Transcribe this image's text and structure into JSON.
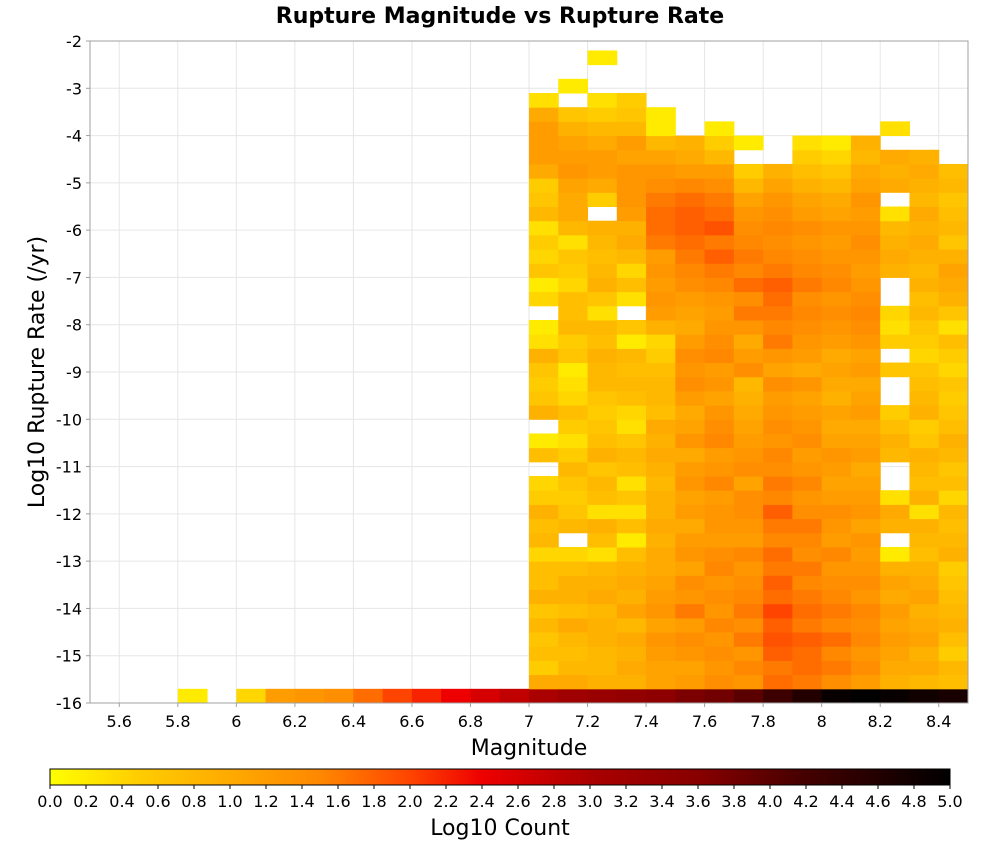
{
  "chart_data": {
    "type": "heatmap",
    "title": "Rupture Magnitude vs Rupture Rate",
    "xlabel": "Magnitude",
    "ylabel": "Log10 Rupture Rate (/yr)",
    "xlim": [
      5.5,
      8.5
    ],
    "ylim": [
      -16,
      -2
    ],
    "x_ticks": [
      5.6,
      5.8,
      6,
      6.2,
      6.4,
      6.6,
      6.8,
      7,
      7.2,
      7.4,
      7.6,
      7.8,
      8,
      8.2,
      8.4
    ],
    "y_ticks": [
      -2,
      -3,
      -4,
      -5,
      -6,
      -7,
      -8,
      -9,
      -10,
      -11,
      -12,
      -13,
      -14,
      -15,
      -16
    ],
    "grid": true,
    "x_bin_width": 0.1,
    "y_bin_width": 0.3,
    "x_first_bin_center": 5.55,
    "y_first_bin_center": -15.85,
    "columns": [
      {
        "x": 5.85,
        "y_start": -15.85,
        "values": [
          0.2
        ]
      },
      {
        "x": 6.05,
        "y_start": -15.85,
        "values": [
          0.4
        ]
      },
      {
        "x": 6.15,
        "y_start": -15.85,
        "values": [
          1.2
        ]
      },
      {
        "x": 6.25,
        "y_start": -15.85,
        "values": [
          1.3
        ]
      },
      {
        "x": 6.35,
        "y_start": -15.85,
        "values": [
          1.4
        ]
      },
      {
        "x": 6.45,
        "y_start": -15.85,
        "values": [
          1.7
        ]
      },
      {
        "x": 6.55,
        "y_start": -15.85,
        "values": [
          2.0
        ]
      },
      {
        "x": 6.65,
        "y_start": -15.85,
        "values": [
          2.2
        ]
      },
      {
        "x": 6.75,
        "y_start": -15.85,
        "values": [
          2.4
        ]
      },
      {
        "x": 6.85,
        "y_start": -15.85,
        "values": [
          2.6
        ]
      },
      {
        "x": 6.95,
        "y_start": -15.85,
        "values": [
          2.8
        ]
      },
      {
        "x": 7.05,
        "y_start": -15.85,
        "values": [
          3.0,
          1.0,
          0.5,
          0.7,
          0.6,
          0.8,
          0.6,
          0.9,
          0.7,
          0.7,
          0.4,
          0.8,
          0.7,
          0.9,
          0.5,
          0.4,
          null,
          0.7,
          0.2,
          null,
          0.9,
          0.6,
          0.5,
          0.6,
          0.9,
          0.3,
          0.2,
          null,
          0.4,
          0.2,
          0.6,
          0.4,
          0.5,
          0.3,
          0.8,
          0.6,
          0.5,
          1.0,
          1.2,
          1.2,
          1.2,
          1.0,
          0.3
        ]
      },
      {
        "x": 7.15,
        "y_start": -15.85,
        "values": [
          3.2,
          1.0,
          0.8,
          0.7,
          0.8,
          1.0,
          0.7,
          0.9,
          0.9,
          0.7,
          0.4,
          null,
          0.8,
          0.6,
          0.5,
          0.6,
          0.8,
          0.5,
          0.3,
          0.5,
          0.7,
          0.4,
          0.3,
          0.2,
          0.6,
          0.5,
          0.8,
          0.7,
          0.7,
          0.4,
          0.5,
          0.6,
          0.3,
          0.8,
          1.0,
          1.0,
          1.1,
          1.3,
          1.2,
          1.1,
          0.9,
          0.6,
          null,
          0.2,
          null
        ]
      },
      {
        "x": 7.25,
        "y_start": -15.85,
        "values": [
          3.3,
          0.9,
          0.8,
          0.8,
          0.9,
          0.9,
          0.8,
          1.0,
          0.9,
          0.8,
          0.3,
          0.7,
          0.9,
          0.3,
          0.7,
          0.8,
          0.6,
          0.9,
          0.7,
          0.6,
          0.5,
          0.6,
          0.8,
          0.8,
          0.9,
          0.7,
          0.8,
          0.3,
          0.6,
          0.9,
          0.8,
          0.7,
          0.8,
          0.9,
          null,
          0.5,
          1.0,
          1.2,
          1.2,
          1.0,
          0.8,
          0.5,
          0.3,
          null,
          null,
          0.2
        ]
      },
      {
        "x": 7.35,
        "y_start": -15.85,
        "values": [
          3.4,
          0.9,
          1.0,
          0.9,
          1.0,
          0.8,
          1.1,
          0.9,
          1.0,
          0.9,
          0.7,
          0.2,
          0.7,
          0.3,
          0.6,
          0.3,
          0.7,
          0.8,
          0.6,
          0.3,
          0.4,
          0.7,
          0.8,
          0.7,
          0.8,
          0.2,
          0.6,
          null,
          0.3,
          0.7,
          0.4,
          0.8,
          1.0,
          0.9,
          1.2,
          1.3,
          1.3,
          1.3,
          1.1,
          1.2,
          0.8,
          0.6,
          0.5
        ]
      },
      {
        "x": 7.45,
        "y_start": -15.85,
        "values": [
          3.5,
          1.1,
          1.1,
          1.2,
          1.3,
          1.1,
          1.3,
          1.2,
          1.1,
          1.0,
          1.0,
          0.9,
          1.0,
          0.9,
          0.9,
          0.8,
          0.9,
          1.0,
          0.9,
          1.0,
          0.7,
          0.8,
          0.8,
          0.7,
          0.5,
          0.4,
          0.9,
          1.2,
          1.3,
          1.2,
          1.3,
          1.2,
          1.6,
          1.7,
          1.7,
          1.6,
          1.4,
          1.3,
          1.1,
          0.8,
          0.2,
          0.2
        ]
      },
      {
        "x": 7.55,
        "y_start": -15.85,
        "values": [
          3.7,
          1.2,
          1.1,
          1.3,
          1.4,
          1.2,
          1.6,
          1.3,
          1.4,
          1.1,
          1.3,
          1.2,
          1.0,
          1.2,
          1.1,
          1.3,
          1.2,
          1.0,
          1.3,
          1.1,
          1.0,
          1.2,
          1.4,
          1.3,
          1.4,
          1.2,
          1.0,
          1.1,
          1.2,
          1.4,
          1.5,
          1.6,
          1.7,
          1.8,
          1.8,
          1.7,
          1.5,
          1.2,
          1.0,
          0.9
        ]
      },
      {
        "x": 7.65,
        "y_start": -15.85,
        "values": [
          3.8,
          1.4,
          1.3,
          1.4,
          1.3,
          1.5,
          1.3,
          1.4,
          1.3,
          1.5,
          1.4,
          1.2,
          1.3,
          1.3,
          1.2,
          1.5,
          1.3,
          1.2,
          1.5,
          1.4,
          1.3,
          1.1,
          1.3,
          1.2,
          1.5,
          1.4,
          1.3,
          1.2,
          1.3,
          1.5,
          1.6,
          1.8,
          1.6,
          1.9,
          1.7,
          1.6,
          1.4,
          1.2,
          0.8,
          0.5,
          0.2
        ]
      },
      {
        "x": 7.75,
        "y_start": -15.85,
        "values": [
          4.0,
          1.3,
          1.5,
          1.3,
          1.6,
          1.4,
          1.6,
          1.5,
          1.4,
          1.3,
          1.5,
          1.2,
          1.3,
          1.4,
          1.4,
          1.1,
          1.4,
          1.3,
          1.2,
          1.1,
          1.0,
          0.9,
          0.8,
          1.4,
          1.2,
          1.0,
          1.3,
          1.6,
          1.4,
          1.7,
          1.5,
          1.6,
          1.5,
          1.4,
          1.3,
          1.1,
          0.8,
          0.5,
          null,
          0.2
        ]
      },
      {
        "x": 7.85,
        "y_start": -15.85,
        "values": [
          4.3,
          1.7,
          1.6,
          1.8,
          1.9,
          1.8,
          2.0,
          1.7,
          1.8,
          1.6,
          1.7,
          1.5,
          1.6,
          1.8,
          1.5,
          1.6,
          1.4,
          1.5,
          1.3,
          1.4,
          1.3,
          1.2,
          1.4,
          1.1,
          1.3,
          1.6,
          1.5,
          1.6,
          1.7,
          1.8,
          1.6,
          1.5,
          1.4,
          1.5,
          1.4,
          1.3,
          1.1,
          0.9
        ]
      },
      {
        "x": 7.95,
        "y_start": -15.85,
        "values": [
          4.6,
          1.6,
          1.7,
          1.7,
          1.8,
          1.6,
          1.7,
          1.6,
          1.5,
          1.6,
          1.4,
          1.5,
          1.6,
          1.4,
          1.3,
          1.5,
          1.3,
          1.2,
          1.4,
          1.3,
          1.2,
          1.1,
          1.3,
          1.0,
          1.2,
          1.3,
          1.4,
          1.5,
          1.4,
          1.6,
          1.5,
          1.4,
          1.3,
          1.4,
          1.2,
          1.1,
          0.9,
          0.7,
          0.5,
          0.3
        ]
      },
      {
        "x": 8.05,
        "y_start": -15.85,
        "values": [
          4.9,
          1.4,
          1.6,
          1.5,
          1.7,
          1.5,
          1.6,
          1.5,
          1.4,
          1.3,
          1.5,
          1.2,
          1.3,
          1.4,
          1.2,
          1.1,
          1.2,
          1.3,
          1.1,
          1.0,
          1.1,
          0.9,
          1.0,
          1.1,
          1.0,
          1.2,
          1.3,
          1.4,
          1.3,
          1.5,
          1.4,
          1.3,
          1.2,
          1.3,
          1.1,
          1.0,
          0.8,
          0.6,
          0.4,
          0.2
        ]
      },
      {
        "x": 8.15,
        "y_start": -15.85,
        "values": [
          5.0,
          1.2,
          1.4,
          1.3,
          1.5,
          1.4,
          1.5,
          1.3,
          1.4,
          1.3,
          1.2,
          1.3,
          1.1,
          1.3,
          1.2,
          1.1,
          1.0,
          1.2,
          1.1,
          1.0,
          1.2,
          1.1,
          1.0,
          1.2,
          1.1,
          1.3,
          1.4,
          1.5,
          1.4,
          1.3,
          1.2,
          1.3,
          1.4,
          1.3,
          1.2,
          1.3,
          1.1,
          1.0,
          0.8,
          0.9
        ]
      },
      {
        "x": 8.25,
        "y_start": -15.85,
        "values": [
          4.9,
          0.9,
          1.0,
          1.1,
          1.2,
          1.1,
          1.2,
          1.0,
          1.1,
          0.9,
          0.2,
          null,
          0.9,
          1.0,
          0.3,
          null,
          null,
          0.8,
          0.9,
          0.7,
          0.5,
          null,
          null,
          0.6,
          null,
          0.5,
          0.3,
          0.4,
          null,
          null,
          0.9,
          1.0,
          0.9,
          0.8,
          0.3,
          null,
          1.0,
          0.9,
          1.0,
          null,
          0.3
        ]
      },
      {
        "x": 8.35,
        "y_start": -15.85,
        "values": [
          4.8,
          0.8,
          1.0,
          0.9,
          1.1,
          1.0,
          0.9,
          1.1,
          1.0,
          0.9,
          0.7,
          0.8,
          0.9,
          0.3,
          0.9,
          0.7,
          0.8,
          0.9,
          0.6,
          0.5,
          0.9,
          0.8,
          0.7,
          0.6,
          0.4,
          0.5,
          0.6,
          0.8,
          0.7,
          0.9,
          0.8,
          0.9,
          1.0,
          0.9,
          1.0,
          0.8,
          0.9,
          1.0,
          0.9
        ]
      },
      {
        "x": 8.45,
        "y_start": -15.85,
        "values": [
          4.7,
          0.7,
          0.8,
          0.5,
          0.7,
          0.9,
          0.8,
          0.7,
          0.6,
          0.5,
          0.9,
          0.8,
          0.7,
          0.8,
          0.4,
          0.7,
          0.6,
          0.8,
          0.9,
          0.7,
          0.6,
          0.5,
          0.6,
          0.4,
          0.5,
          0.7,
          0.3,
          0.6,
          0.9,
          1.0,
          1.1,
          0.9,
          0.6,
          0.8,
          0.7,
          0.6,
          0.8,
          0.7
        ]
      }
    ],
    "colorbar": {
      "label": "Log10 Count",
      "min": 0.0,
      "max": 5.0,
      "tick_labels": [
        "0.0",
        "0.2",
        "0.4",
        "0.6",
        "0.8",
        "1.0",
        "1.2",
        "1.4",
        "1.6",
        "1.8",
        "2.0",
        "2.2",
        "2.4",
        "2.6",
        "2.8",
        "3.0",
        "3.2",
        "3.4",
        "3.6",
        "3.8",
        "4.0",
        "4.2",
        "4.4",
        "4.6",
        "4.8",
        "5.0"
      ],
      "stops": [
        {
          "value": 0.0,
          "color": "#ffff00"
        },
        {
          "value": 0.5,
          "color": "#ffcc00"
        },
        {
          "value": 1.0,
          "color": "#ffaa00"
        },
        {
          "value": 1.5,
          "color": "#ff8800"
        },
        {
          "value": 2.0,
          "color": "#ff4400"
        },
        {
          "value": 2.4,
          "color": "#ee0000"
        },
        {
          "value": 3.0,
          "color": "#aa0000"
        },
        {
          "value": 3.6,
          "color": "#880000"
        },
        {
          "value": 4.2,
          "color": "#440000"
        },
        {
          "value": 5.0,
          "color": "#000000"
        }
      ]
    }
  }
}
